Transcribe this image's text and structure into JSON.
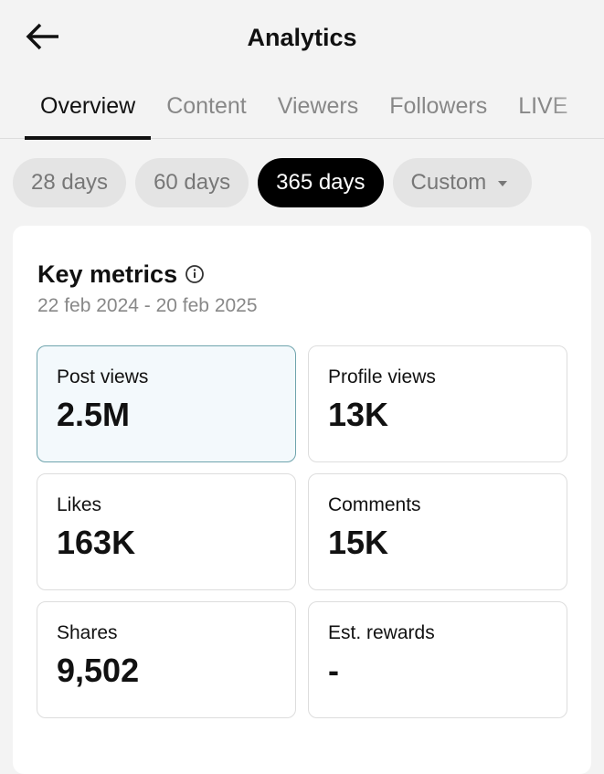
{
  "header": {
    "title": "Analytics"
  },
  "tabs": [
    "Overview",
    "Content",
    "Viewers",
    "Followers",
    "LIVE"
  ],
  "periods": [
    "28 days",
    "60 days",
    "365 days",
    "Custom"
  ],
  "key_metrics": {
    "title": "Key metrics",
    "date_range": "22 feb 2024 - 20 feb 2025",
    "metrics": [
      {
        "label": "Post views",
        "value": "2.5M"
      },
      {
        "label": "Profile views",
        "value": "13K"
      },
      {
        "label": "Likes",
        "value": "163K"
      },
      {
        "label": "Comments",
        "value": "15K"
      },
      {
        "label": "Shares",
        "value": "9,502"
      },
      {
        "label": "Est. rewards",
        "value": "-"
      }
    ]
  }
}
